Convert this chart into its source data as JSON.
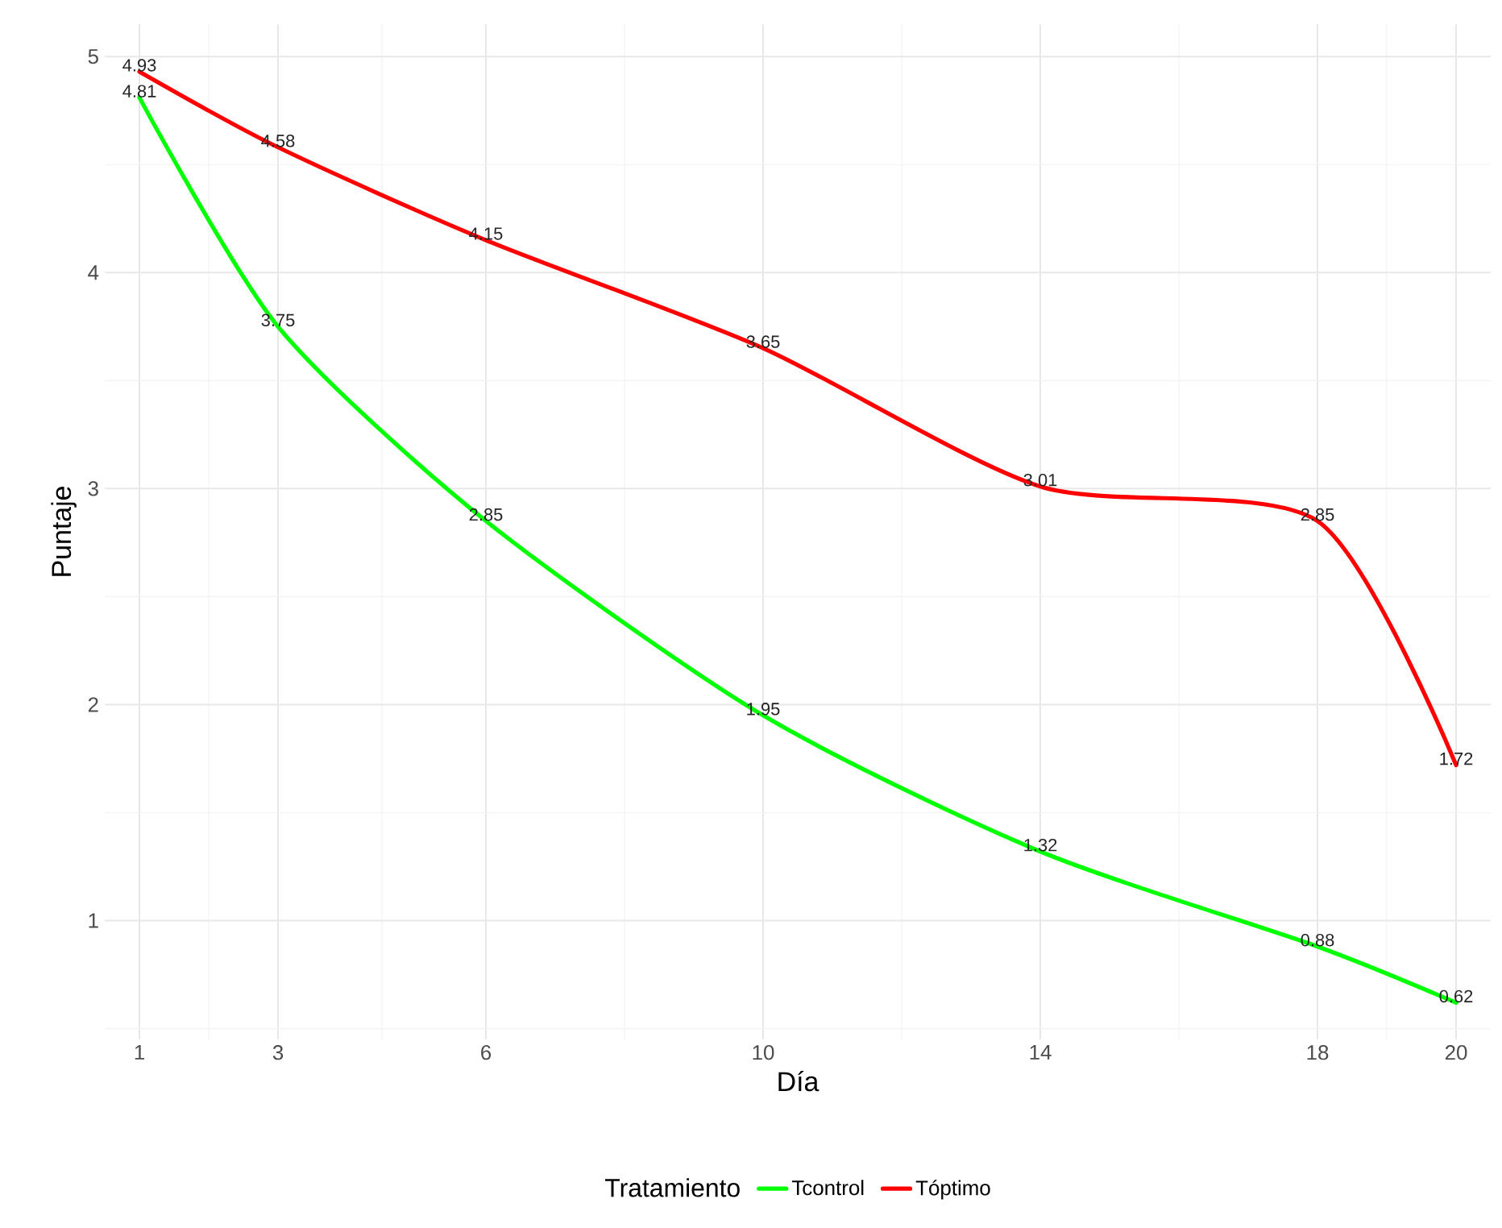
{
  "chart_data": {
    "type": "line",
    "xlabel": "Día",
    "ylabel": "Puntaje",
    "legend_title": "Tratamiento",
    "x": [
      1,
      3,
      6,
      10,
      14,
      18,
      20
    ],
    "series": [
      {
        "name": "Tcontrol",
        "color": "#00ff00",
        "values": [
          4.81,
          3.75,
          2.85,
          1.95,
          1.32,
          0.88,
          0.62
        ]
      },
      {
        "name": "Tóptimo",
        "color": "#ff0000",
        "values": [
          4.93,
          4.58,
          4.15,
          3.65,
          3.01,
          2.85,
          1.72
        ]
      }
    ],
    "xlim": [
      0.5,
      20.5
    ],
    "xticks": [
      1,
      3,
      6,
      10,
      14,
      18,
      20
    ],
    "ylim": [
      0.45,
      5.15
    ],
    "yticks": [
      1,
      2,
      3,
      4,
      5
    ],
    "grid": true,
    "legend": "bottom",
    "data_labels": true,
    "marker": "none",
    "line_style": "solid"
  }
}
